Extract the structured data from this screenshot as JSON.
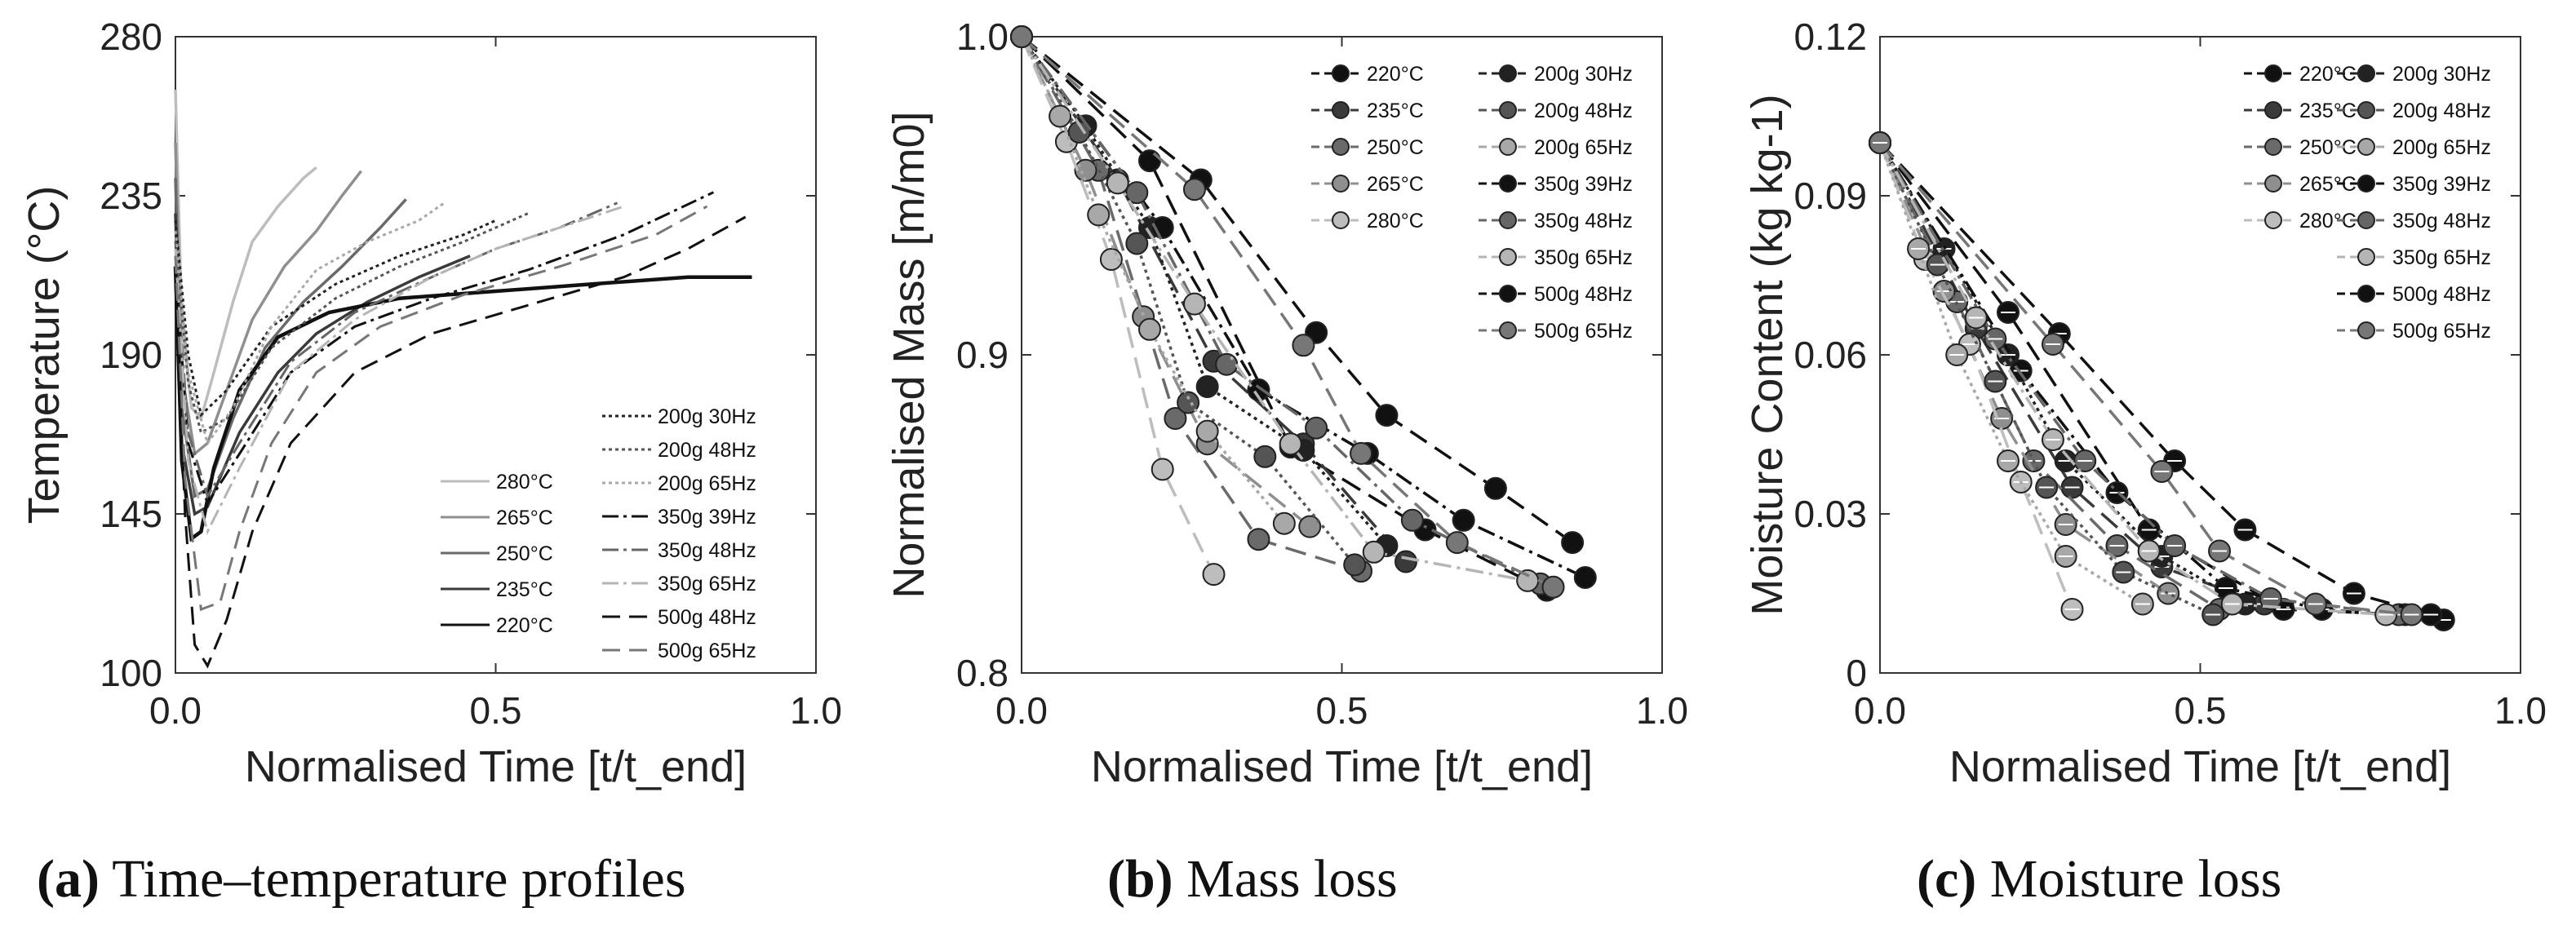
{
  "chart_data": [
    {
      "type": "line",
      "id": "a",
      "xlabel": "Normalised Time [t/t_end]",
      "ylabel": "Temperature (°C)",
      "xlim": [
        0,
        1.0
      ],
      "ylim": [
        100,
        280
      ],
      "xticks": [
        "0.0",
        "0.5",
        "1.0"
      ],
      "yticks": [
        "100",
        "145",
        "190",
        "235",
        "280"
      ],
      "xtick_values": [
        0,
        0.5,
        1.0
      ],
      "ytick_values": [
        100,
        145,
        190,
        235,
        280
      ],
      "legend_left": [
        "280°C",
        "265°C",
        "250°C",
        "235°C",
        "220°C"
      ],
      "legend_right": [
        "200g 30Hz",
        "200g 48Hz",
        "200g 65Hz",
        "350g 39Hz",
        "350g 48Hz",
        "350g 65Hz",
        "500g 48Hz",
        "500g 65Hz"
      ],
      "series": [
        {
          "name": "280°C",
          "x": [
            0,
            0.01,
            0.025,
            0.04,
            0.06,
            0.09,
            0.12,
            0.16,
            0.2,
            0.22
          ],
          "y": [
            265,
            200,
            175,
            172,
            185,
            205,
            222,
            232,
            240,
            243
          ]
        },
        {
          "name": "265°C",
          "x": [
            0,
            0.01,
            0.03,
            0.05,
            0.08,
            0.12,
            0.17,
            0.22,
            0.26,
            0.29
          ],
          "y": [
            250,
            185,
            162,
            165,
            180,
            200,
            215,
            225,
            235,
            242
          ]
        },
        {
          "name": "250°C",
          "x": [
            0,
            0.01,
            0.03,
            0.05,
            0.09,
            0.14,
            0.2,
            0.26,
            0.32,
            0.36
          ],
          "y": [
            240,
            175,
            150,
            152,
            172,
            192,
            205,
            215,
            226,
            234
          ]
        },
        {
          "name": "235°C",
          "x": [
            0,
            0.01,
            0.03,
            0.05,
            0.1,
            0.16,
            0.22,
            0.3,
            0.38,
            0.46
          ],
          "y": [
            230,
            165,
            145,
            147,
            168,
            185,
            196,
            205,
            212,
            218
          ]
        },
        {
          "name": "220°C",
          "x": [
            0,
            0.01,
            0.025,
            0.04,
            0.06,
            0.1,
            0.16,
            0.24,
            0.35,
            0.5,
            0.65,
            0.8,
            0.9
          ],
          "y": [
            215,
            160,
            138,
            140,
            158,
            180,
            195,
            202,
            206,
            208,
            210,
            212,
            212
          ]
        },
        {
          "name": "200g 30Hz",
          "x": [
            0,
            0.02,
            0.04,
            0.08,
            0.15,
            0.25,
            0.35,
            0.45,
            0.5
          ],
          "y": [
            228,
            190,
            173,
            180,
            198,
            210,
            218,
            224,
            228
          ]
        },
        {
          "name": "200g 48Hz",
          "x": [
            0,
            0.02,
            0.04,
            0.08,
            0.15,
            0.25,
            0.35,
            0.45,
            0.55
          ],
          "y": [
            222,
            182,
            168,
            172,
            192,
            206,
            215,
            222,
            230
          ]
        },
        {
          "name": "200g 65Hz",
          "x": [
            0,
            0.02,
            0.05,
            0.09,
            0.15,
            0.22,
            0.3,
            0.38,
            0.42
          ],
          "y": [
            225,
            185,
            165,
            175,
            198,
            214,
            222,
            228,
            233
          ]
        },
        {
          "name": "350g 39Hz",
          "x": [
            0,
            0.02,
            0.05,
            0.1,
            0.18,
            0.28,
            0.4,
            0.55,
            0.7,
            0.84
          ],
          "y": [
            215,
            165,
            148,
            162,
            185,
            198,
            206,
            214,
            224,
            236
          ]
        },
        {
          "name": "350g 48Hz",
          "x": [
            0,
            0.02,
            0.05,
            0.1,
            0.18,
            0.28,
            0.4,
            0.5,
            0.6,
            0.69
          ],
          "y": [
            218,
            168,
            150,
            165,
            188,
            202,
            212,
            220,
            226,
            233
          ]
        },
        {
          "name": "350g 65Hz",
          "x": [
            0,
            0.02,
            0.05,
            0.1,
            0.18,
            0.28,
            0.4,
            0.5,
            0.6,
            0.7
          ],
          "y": [
            220,
            160,
            140,
            158,
            185,
            200,
            212,
            220,
            226,
            232
          ]
        },
        {
          "name": "500g 48Hz",
          "x": [
            0,
            0.015,
            0.03,
            0.05,
            0.08,
            0.12,
            0.18,
            0.28,
            0.4,
            0.55,
            0.7,
            0.8,
            0.89
          ],
          "y": [
            210,
            145,
            108,
            102,
            115,
            140,
            165,
            185,
            196,
            204,
            212,
            220,
            229
          ]
        },
        {
          "name": "500g 65Hz",
          "x": [
            0,
            0.015,
            0.04,
            0.07,
            0.1,
            0.15,
            0.22,
            0.32,
            0.45,
            0.6,
            0.75,
            0.83
          ],
          "y": [
            218,
            155,
            118,
            120,
            140,
            165,
            185,
            198,
            207,
            215,
            224,
            232
          ]
        }
      ]
    },
    {
      "type": "line",
      "id": "b",
      "xlabel": "Normalised Time [t/t_end]",
      "ylabel": "Normalised Mass [m/m0]",
      "xlim": [
        0,
        1.0
      ],
      "ylim": [
        0.8,
        1.0
      ],
      "xticks": [
        "0.0",
        "0.5",
        "1.0"
      ],
      "yticks": [
        "0.8",
        "0.9",
        "1.0"
      ],
      "xtick_values": [
        0,
        0.5,
        1.0
      ],
      "ytick_values": [
        0.8,
        0.9,
        1.0
      ],
      "legend_left": [
        "220°C",
        "235°C",
        "250°C",
        "265°C",
        "280°C"
      ],
      "legend_right": [
        "200g 30Hz",
        "200g 48Hz",
        "200g 65Hz",
        "350g 39Hz",
        "350g 48Hz",
        "350g 65Hz",
        "500g 48Hz",
        "500g 65Hz"
      ],
      "series": [
        {
          "name": "220°C",
          "x": [
            0,
            0.2,
            0.42,
            0.63,
            0.82
          ],
          "y": [
            1.0,
            0.961,
            0.871,
            0.845,
            0.826
          ]
        },
        {
          "name": "235°C",
          "x": [
            0,
            0.15,
            0.3,
            0.44,
            0.6
          ],
          "y": [
            1.0,
            0.955,
            0.898,
            0.872,
            0.835
          ]
        },
        {
          "name": "250°C",
          "x": [
            0,
            0.12,
            0.24,
            0.37,
            0.53
          ],
          "y": [
            1.0,
            0.958,
            0.88,
            0.842,
            0.832
          ]
        },
        {
          "name": "265°C",
          "x": [
            0,
            0.1,
            0.19,
            0.29,
            0.45
          ],
          "y": [
            1.0,
            0.958,
            0.912,
            0.872,
            0.846
          ]
        },
        {
          "name": "280°C",
          "x": [
            0,
            0.07,
            0.14,
            0.22,
            0.3
          ],
          "y": [
            1.0,
            0.967,
            0.93,
            0.864,
            0.831
          ]
        },
        {
          "name": "200g 30Hz",
          "x": [
            0,
            0.1,
            0.2,
            0.29,
            0.44,
            0.57
          ],
          "y": [
            1.0,
            0.972,
            0.94,
            0.89,
            0.87,
            0.84
          ]
        },
        {
          "name": "200g 48Hz",
          "x": [
            0,
            0.09,
            0.18,
            0.26,
            0.38,
            0.52
          ],
          "y": [
            1.0,
            0.97,
            0.935,
            0.885,
            0.868,
            0.834
          ]
        },
        {
          "name": "200g 65Hz",
          "x": [
            0,
            0.06,
            0.12,
            0.2,
            0.29,
            0.41
          ],
          "y": [
            1.0,
            0.975,
            0.944,
            0.908,
            0.876,
            0.847
          ]
        },
        {
          "name": "350g 39Hz",
          "x": [
            0,
            0.22,
            0.37,
            0.54,
            0.69,
            0.88
          ],
          "y": [
            1.0,
            0.94,
            0.889,
            0.869,
            0.848,
            0.83
          ]
        },
        {
          "name": "350g 48Hz",
          "x": [
            0,
            0.18,
            0.32,
            0.46,
            0.61,
            0.81
          ],
          "y": [
            1.0,
            0.951,
            0.897,
            0.877,
            0.848,
            0.828
          ]
        },
        {
          "name": "350g 65Hz",
          "x": [
            0,
            0.15,
            0.27,
            0.42,
            0.55,
            0.79
          ],
          "y": [
            1.0,
            0.954,
            0.916,
            0.872,
            0.838,
            0.829
          ]
        },
        {
          "name": "500g 48Hz",
          "x": [
            0,
            0.28,
            0.46,
            0.57,
            0.74,
            0.86
          ],
          "y": [
            1.0,
            0.955,
            0.907,
            0.881,
            0.858,
            0.841
          ]
        },
        {
          "name": "500g 65Hz",
          "x": [
            0,
            0.27,
            0.44,
            0.53,
            0.68,
            0.83
          ],
          "y": [
            1.0,
            0.952,
            0.903,
            0.869,
            0.841,
            0.827
          ]
        }
      ]
    },
    {
      "type": "line",
      "id": "c",
      "xlabel": "Normalised Time [t/t_end]",
      "ylabel": "Moisture Content (kg kg-1)",
      "xlim": [
        0,
        1.0
      ],
      "ylim": [
        0,
        0.12
      ],
      "xticks": [
        "0.0",
        "0.5",
        "1.0"
      ],
      "yticks": [
        "0",
        "0.03",
        "0.06",
        "0.09",
        "0.12"
      ],
      "xtick_values": [
        0,
        0.5,
        1.0
      ],
      "ytick_values": [
        0,
        0.03,
        0.06,
        0.09,
        0.12
      ],
      "legend_left": [
        "220°C",
        "235°C",
        "250°C",
        "265°C",
        "280°C"
      ],
      "legend_right": [
        "200g 30Hz",
        "200g 48Hz",
        "200g 65Hz",
        "350g 39Hz",
        "350g 48Hz",
        "350g 65Hz",
        "500g 48Hz",
        "500g 65Hz"
      ],
      "series": [
        {
          "name": "220°C",
          "x": [
            0,
            0.2,
            0.42,
            0.63,
            0.82
          ],
          "y": [
            0.1,
            0.068,
            0.027,
            0.012,
            0.011
          ]
        },
        {
          "name": "235°C",
          "x": [
            0,
            0.15,
            0.3,
            0.44,
            0.6
          ],
          "y": [
            0.1,
            0.065,
            0.035,
            0.02,
            0.013
          ]
        },
        {
          "name": "250°C",
          "x": [
            0,
            0.12,
            0.24,
            0.37,
            0.53
          ],
          "y": [
            0.1,
            0.07,
            0.04,
            0.024,
            0.012
          ]
        },
        {
          "name": "265°C",
          "x": [
            0,
            0.1,
            0.19,
            0.29,
            0.45
          ],
          "y": [
            0.1,
            0.072,
            0.048,
            0.028,
            0.015
          ]
        },
        {
          "name": "280°C",
          "x": [
            0,
            0.07,
            0.14,
            0.22,
            0.3
          ],
          "y": [
            0.1,
            0.078,
            0.062,
            0.036,
            0.012
          ]
        },
        {
          "name": "200g 30Hz",
          "x": [
            0,
            0.1,
            0.2,
            0.29,
            0.44,
            0.57
          ],
          "y": [
            0.1,
            0.08,
            0.06,
            0.04,
            0.022,
            0.013
          ]
        },
        {
          "name": "200g 48Hz",
          "x": [
            0,
            0.09,
            0.18,
            0.26,
            0.38,
            0.52
          ],
          "y": [
            0.1,
            0.077,
            0.055,
            0.035,
            0.019,
            0.011
          ]
        },
        {
          "name": "200g 65Hz",
          "x": [
            0,
            0.06,
            0.12,
            0.2,
            0.29,
            0.41
          ],
          "y": [
            0.1,
            0.08,
            0.06,
            0.04,
            0.022,
            0.013
          ]
        },
        {
          "name": "350g 39Hz",
          "x": [
            0,
            0.22,
            0.37,
            0.54,
            0.69,
            0.88
          ],
          "y": [
            0.1,
            0.057,
            0.034,
            0.016,
            0.012,
            0.01
          ]
        },
        {
          "name": "350g 48Hz",
          "x": [
            0,
            0.18,
            0.32,
            0.46,
            0.61,
            0.81
          ],
          "y": [
            0.1,
            0.063,
            0.04,
            0.024,
            0.014,
            0.011
          ]
        },
        {
          "name": "350g 65Hz",
          "x": [
            0,
            0.15,
            0.27,
            0.42,
            0.55,
            0.79
          ],
          "y": [
            0.1,
            0.067,
            0.044,
            0.023,
            0.013,
            0.011
          ]
        },
        {
          "name": "500g 48Hz",
          "x": [
            0,
            0.28,
            0.46,
            0.57,
            0.74,
            0.86
          ],
          "y": [
            0.1,
            0.064,
            0.04,
            0.027,
            0.015,
            0.011
          ]
        },
        {
          "name": "500g 65Hz",
          "x": [
            0,
            0.27,
            0.44,
            0.53,
            0.68,
            0.83
          ],
          "y": [
            0.1,
            0.062,
            0.038,
            0.023,
            0.013,
            0.011
          ]
        }
      ]
    }
  ],
  "captions": [
    {
      "letter": "(a)",
      "text": "Time–temperature profiles"
    },
    {
      "letter": "(b)",
      "text": "Mass loss"
    },
    {
      "letter": "(c)",
      "text": "Moisture loss"
    }
  ],
  "style_colors": {
    "220°C": "#111111",
    "235°C": "#3a3a3a",
    "250°C": "#6a6a6a",
    "265°C": "#8f8f8f",
    "280°C": "#bdbdbd",
    "200g 30Hz": "#222222",
    "200g 48Hz": "#555555",
    "200g 65Hz": "#a8a8a8",
    "350g 39Hz": "#111111",
    "350g 48Hz": "#666666",
    "350g 65Hz": "#b5b5b5",
    "500g 48Hz": "#111111",
    "500g 65Hz": "#777777"
  }
}
